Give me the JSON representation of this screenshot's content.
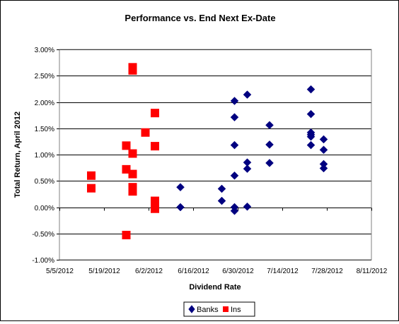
{
  "chart_data": {
    "type": "scatter",
    "title": "Performance vs. End Next Ex-Date",
    "xlabel": "Dividend Rate",
    "ylabel": "Total Return, April 2012",
    "xlim": [
      "2012-05-05",
      "2012-08-11"
    ],
    "ylim": [
      -1.0,
      3.0
    ],
    "x_ticks": [
      "5/5/2012",
      "5/19/2012",
      "6/2/2012",
      "6/16/2012",
      "6/30/2012",
      "7/14/2012",
      "7/28/2012",
      "8/11/2012"
    ],
    "x_tick_dates": [
      "2012-05-05",
      "2012-05-19",
      "2012-06-02",
      "2012-06-16",
      "2012-06-30",
      "2012-07-14",
      "2012-07-28",
      "2012-08-11"
    ],
    "y_ticks": [
      "-1.00%",
      "-0.50%",
      "0.00%",
      "0.50%",
      "1.00%",
      "1.50%",
      "2.00%",
      "2.50%",
      "3.00%"
    ],
    "y_tick_values": [
      -1.0,
      -0.5,
      0.0,
      0.5,
      1.0,
      1.5,
      2.0,
      2.5,
      3.0
    ],
    "grid": "horizontal",
    "legend_position": "bottom",
    "series": [
      {
        "name": "Banks",
        "marker": "diamond",
        "color": "#000080",
        "points": [
          {
            "x": "2012-06-12",
            "y": 0.38
          },
          {
            "x": "2012-06-12",
            "y": 0.0
          },
          {
            "x": "2012-06-25",
            "y": 0.35
          },
          {
            "x": "2012-06-25",
            "y": 0.12
          },
          {
            "x": "2012-06-29",
            "y": 2.02
          },
          {
            "x": "2012-06-29",
            "y": 1.71
          },
          {
            "x": "2012-06-29",
            "y": 1.18
          },
          {
            "x": "2012-06-29",
            "y": 0.6
          },
          {
            "x": "2012-06-29",
            "y": 0.0
          },
          {
            "x": "2012-06-29",
            "y": -0.07
          },
          {
            "x": "2012-07-03",
            "y": 2.14
          },
          {
            "x": "2012-07-03",
            "y": 0.85
          },
          {
            "x": "2012-07-03",
            "y": 0.73
          },
          {
            "x": "2012-07-03",
            "y": 0.01
          },
          {
            "x": "2012-07-10",
            "y": 1.56
          },
          {
            "x": "2012-07-10",
            "y": 1.19
          },
          {
            "x": "2012-07-10",
            "y": 0.84
          },
          {
            "x": "2012-07-23",
            "y": 2.24
          },
          {
            "x": "2012-07-23",
            "y": 1.77
          },
          {
            "x": "2012-07-23",
            "y": 1.42
          },
          {
            "x": "2012-07-23",
            "y": 1.38
          },
          {
            "x": "2012-07-23",
            "y": 1.34
          },
          {
            "x": "2012-07-23",
            "y": 1.18
          },
          {
            "x": "2012-07-27",
            "y": 1.29
          },
          {
            "x": "2012-07-27",
            "y": 1.09
          },
          {
            "x": "2012-07-27",
            "y": 0.82
          },
          {
            "x": "2012-07-27",
            "y": 0.74
          }
        ]
      },
      {
        "name": "Ins",
        "marker": "square",
        "color": "#ff0000",
        "points": [
          {
            "x": "2012-05-15",
            "y": 0.6
          },
          {
            "x": "2012-05-15",
            "y": 0.36
          },
          {
            "x": "2012-05-26",
            "y": 1.17
          },
          {
            "x": "2012-05-26",
            "y": 0.72
          },
          {
            "x": "2012-05-26",
            "y": -0.53
          },
          {
            "x": "2012-05-28",
            "y": 2.66
          },
          {
            "x": "2012-05-28",
            "y": 2.6
          },
          {
            "x": "2012-05-28",
            "y": 1.02
          },
          {
            "x": "2012-05-28",
            "y": 0.63
          },
          {
            "x": "2012-05-28",
            "y": 0.38
          },
          {
            "x": "2012-05-28",
            "y": 0.3
          },
          {
            "x": "2012-06-01",
            "y": 1.42
          },
          {
            "x": "2012-06-04",
            "y": 1.79
          },
          {
            "x": "2012-06-04",
            "y": 1.16
          },
          {
            "x": "2012-06-04",
            "y": 0.12
          },
          {
            "x": "2012-06-04",
            "y": 0.05
          },
          {
            "x": "2012-06-04",
            "y": -0.03
          }
        ]
      }
    ]
  }
}
